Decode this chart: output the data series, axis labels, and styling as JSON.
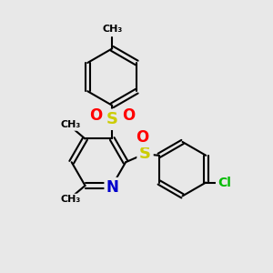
{
  "background_color": "#e8e8e8",
  "bond_color": "#000000",
  "bond_width": 1.5,
  "atom_colors": {
    "S": "#cccc00",
    "O": "#ff0000",
    "N": "#0000cc",
    "Cl": "#00bb00"
  },
  "figsize": [
    3.0,
    3.0
  ],
  "dpi": 100,
  "xlim": [
    0,
    10
  ],
  "ylim": [
    0,
    10
  ]
}
